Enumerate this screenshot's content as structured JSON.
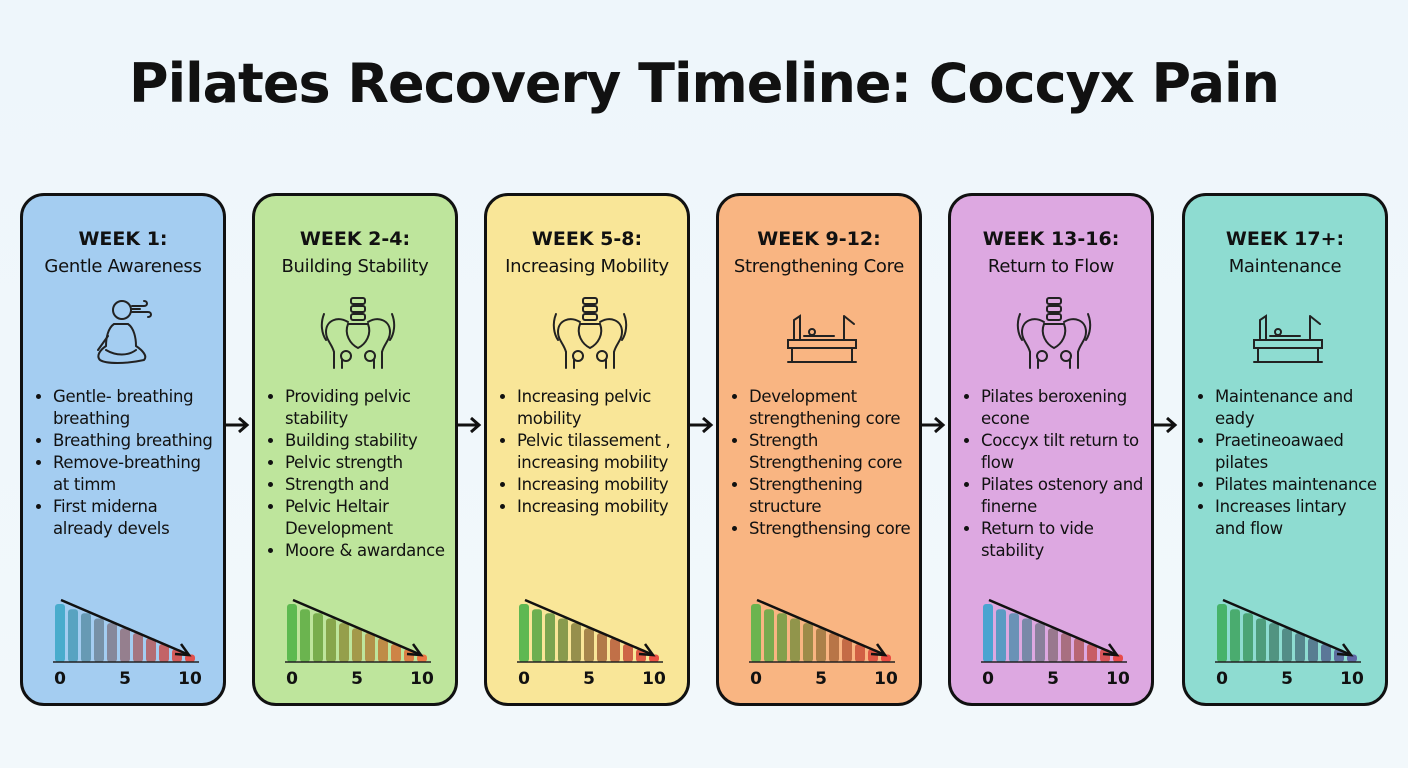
{
  "title": "Pilates Recovery Timeline: Coccyx Pain",
  "stages": [
    {
      "week": "WEEK 1:",
      "name": "Gentle Awareness",
      "icon": "meditation-breathing-icon",
      "color": "#a4cdf1",
      "items": [
        "Gentle- breathing breathing",
        "Breathing breathing",
        "Remove-breathing at timm",
        "First miderna already devels"
      ],
      "bar_colors": [
        "#3fa9c9",
        "#e8453c"
      ]
    },
    {
      "week": "WEEK 2-4:",
      "name": "Building Stability",
      "icon": "pelvis-icon",
      "color": "#bee59c",
      "items": [
        "Providing pelvic stability",
        "Building stability",
        "Pelvic strength",
        "Strength and",
        "Pelvic Heltair Development",
        "Moore & awardance"
      ],
      "bar_colors": [
        "#52b548",
        "#ee6a3a"
      ]
    },
    {
      "week": "WEEK 5-8:",
      "name": "Increasing Mobility",
      "icon": "pelvis-icon",
      "color": "#f9e698",
      "items": [
        "Increasing pelvic mobility",
        "Pelvic tilassement , increasing mobility",
        "Increasing mobility",
        "Increasing mobility"
      ],
      "bar_colors": [
        "#4db34a",
        "#e8403a"
      ]
    },
    {
      "week": "WEEK 9-12:",
      "name": "Strengthening Core",
      "icon": "reformer-icon",
      "color": "#f9b582",
      "items": [
        "Development strengthening core",
        "Strength Strengthening core",
        "Strengthening structure",
        "Strengthensing core"
      ],
      "bar_colors": [
        "#5bb449",
        "#e8403a"
      ]
    },
    {
      "week": "WEEK 13-16:",
      "name": "Return to Flow",
      "icon": "pelvis-icon",
      "color": "#dda8e1",
      "items": [
        "Pilates beroxening econe",
        "Coccyx tilt return to flow",
        "Pilates ostenory and finerne",
        "Return to vide stability"
      ],
      "bar_colors": [
        "#3aa3cf",
        "#e8403a"
      ]
    },
    {
      "week": "WEEK 17+:",
      "name": "Maintenance",
      "icon": "reformer-icon",
      "color": "#8edcd1",
      "items": [
        "Maintenance and eady",
        "Praetineoawaed pilates",
        "Pilates maintenance",
        "Increases lintary and flow"
      ],
      "bar_colors": [
        "#3fae5e",
        "#5a5a9e"
      ]
    }
  ],
  "chart_data": {
    "type": "bar",
    "x": [
      0,
      1,
      2,
      3,
      4,
      5,
      6,
      7,
      8,
      9,
      10
    ],
    "values": [
      10,
      9.1,
      8.4,
      7.5,
      6.7,
      5.8,
      5,
      4.1,
      3.1,
      2.2,
      1.3
    ],
    "tick_labels": [
      "0",
      "5",
      "10"
    ],
    "trend": "decreasing"
  }
}
